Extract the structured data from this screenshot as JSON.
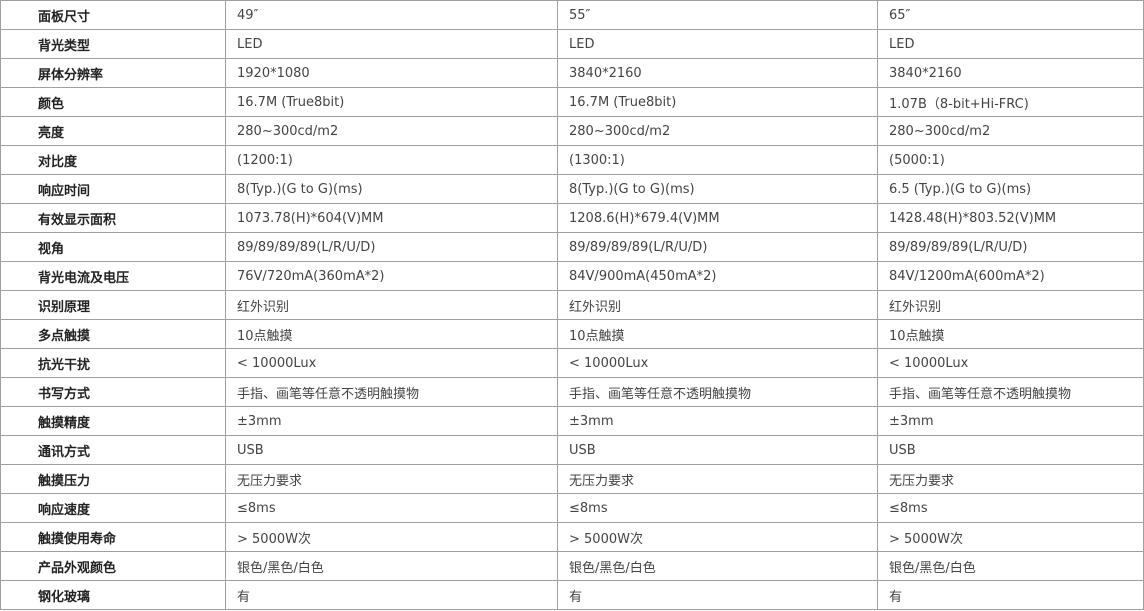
{
  "table": {
    "rows": [
      [
        "面板尺寸",
        "49″",
        "55″",
        "65″"
      ],
      [
        "背光类型",
        "LED",
        "LED",
        "LED"
      ],
      [
        "屏体分辨率",
        "1920*1080",
        "3840*2160",
        "3840*2160"
      ],
      [
        "颜色",
        "16.7M (True8bit)",
        "16.7M (True8bit)",
        "1.07B（8-bit+Hi-FRC)"
      ],
      [
        "亮度",
        "280~300cd/m2",
        "280~300cd/m2",
        "280~300cd/m2"
      ],
      [
        "对比度",
        "(1200:1)",
        "(1300:1)",
        "(5000:1)"
      ],
      [
        "响应时间",
        "8(Typ.)(G to G)(ms)",
        "8(Typ.)(G to G)(ms)",
        "6.5 (Typ.)(G to G)(ms)"
      ],
      [
        "有效显示面积",
        "1073.78(H)*604(V)MM",
        "1208.6(H)*679.4(V)MM",
        "1428.48(H)*803.52(V)MM"
      ],
      [
        "视角",
        "89/89/89/89(L/R/U/D)",
        "89/89/89/89(L/R/U/D)",
        "89/89/89/89(L/R/U/D)"
      ],
      [
        "背光电流及电压",
        "76V/720mA(360mA*2)",
        "84V/900mA(450mA*2)",
        "84V/1200mA(600mA*2)"
      ],
      [
        "识别原理",
        "红外识别",
        "红外识别",
        "红外识别"
      ],
      [
        "多点触摸",
        "10点触摸",
        "10点触摸",
        "10点触摸"
      ],
      [
        "抗光干扰",
        "< 10000Lux",
        "< 10000Lux",
        "< 10000Lux"
      ],
      [
        "书写方式",
        "手指、画笔等任意不透明触摸物",
        "手指、画笔等任意不透明触摸物",
        "手指、画笔等任意不透明触摸物"
      ],
      [
        "触摸精度",
        "±3mm",
        "±3mm",
        "±3mm"
      ],
      [
        "通讯方式",
        "USB",
        "USB",
        "USB"
      ],
      [
        "触摸压力",
        "无压力要求",
        "无压力要求",
        "无压力要求"
      ],
      [
        "响应速度",
        "≤8ms",
        "≤8ms",
        "≤8ms"
      ],
      [
        "触摸使用寿命",
        "> 5000W次",
        "> 5000W次",
        "> 5000W次"
      ],
      [
        "产品外观颜色",
        "银色/黑色/白色",
        "银色/黑色/白色",
        "银色/黑色/白色"
      ],
      [
        "钢化玻璃",
        "有",
        "有",
        "有"
      ]
    ]
  }
}
